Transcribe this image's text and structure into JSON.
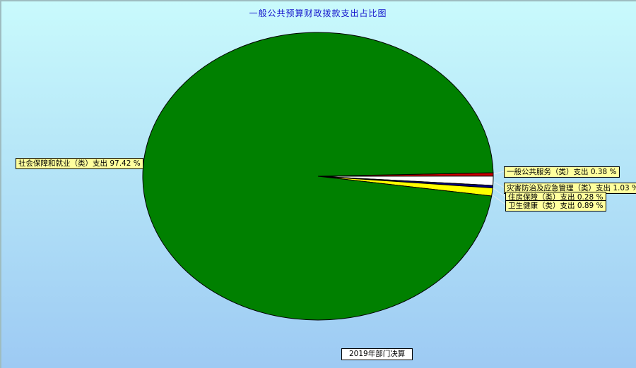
{
  "chart_data": {
    "type": "pie",
    "title": "一般公共预算财政拨款支出占比图",
    "footer": "2019年部门决算",
    "unit": "%",
    "start_angle_deg": -1.4,
    "clockwise": true,
    "legend_position": "callout-labels",
    "slices": [
      {
        "label": "一般公共服务（类）支出",
        "value": 0.38,
        "color": "#cc0000",
        "display": "一般公共服务（类）支出 0.38 %"
      },
      {
        "label": "灾害防治及应急管理（类）支出",
        "value": 1.03,
        "color": "#ffffff",
        "display": "灾害防治及应急管理（类）支出 1.03 %"
      },
      {
        "label": "住房保障（类）支出",
        "value": 0.28,
        "color": "#000080",
        "display": "住房保障（类）支出 0.28 %"
      },
      {
        "label": "卫生健康（类）支出",
        "value": 0.89,
        "color": "#ffff00",
        "display": "卫生健康（类）支出 0.89 %"
      },
      {
        "label": "社会保障和就业（类）支出",
        "value": 97.42,
        "color": "#008000",
        "display": "社会保障和就业（类）支出 97.42 %"
      }
    ],
    "colors": {
      "background_top": "#c9fafc",
      "background_bottom": "#9dcaf3",
      "label_background": "#ffff9e",
      "title_text": "#1414cc",
      "slice_outline": "#000000"
    }
  }
}
